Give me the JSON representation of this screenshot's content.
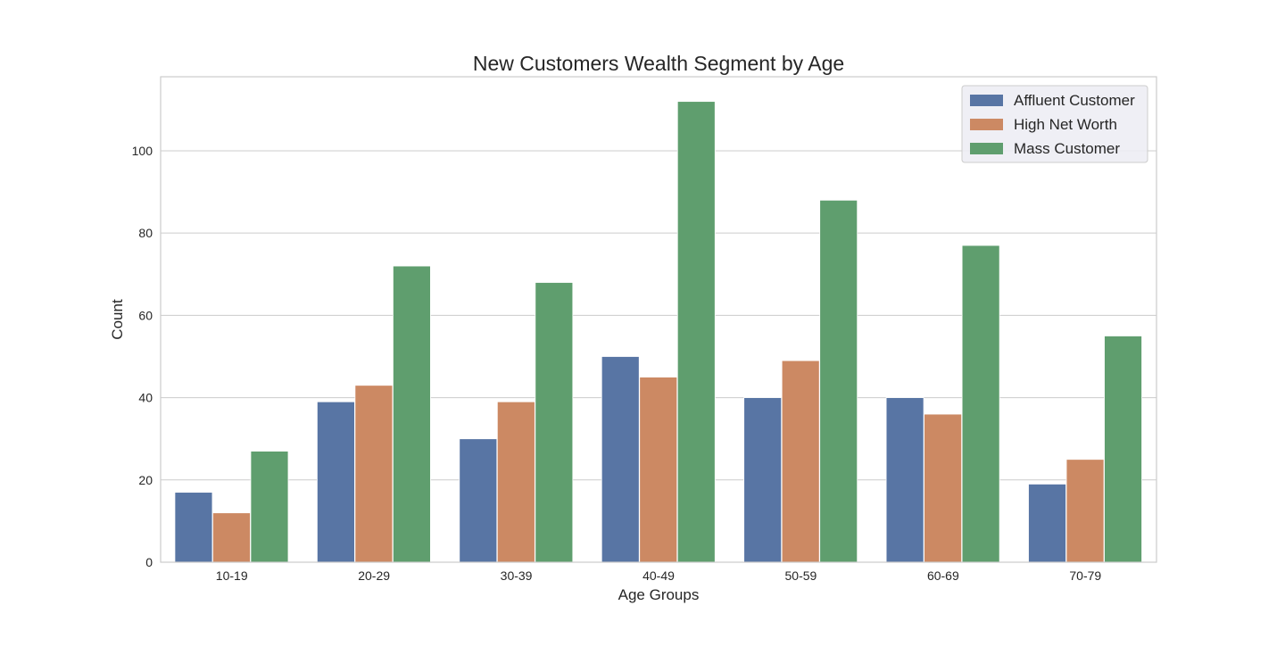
{
  "chart_data": {
    "type": "bar",
    "title": "New Customers Wealth Segment by Age",
    "xlabel": "Age Groups",
    "ylabel": "Count",
    "categories": [
      "10-19",
      "20-29",
      "30-39",
      "40-49",
      "50-59",
      "60-69",
      "70-79"
    ],
    "series": [
      {
        "name": "Affluent Customer",
        "color": "#5875a4",
        "values": [
          17,
          39,
          30,
          50,
          40,
          40,
          19
        ]
      },
      {
        "name": "High Net Worth",
        "color": "#cc8963",
        "values": [
          12,
          43,
          39,
          45,
          49,
          36,
          25
        ]
      },
      {
        "name": "Mass Customer",
        "color": "#5f9e6e",
        "values": [
          27,
          72,
          68,
          112,
          88,
          77,
          55
        ]
      }
    ],
    "ylim": [
      0,
      118
    ],
    "yticks": [
      0,
      20,
      40,
      60,
      80,
      100
    ],
    "grid": true,
    "legend_position": "top-right"
  }
}
